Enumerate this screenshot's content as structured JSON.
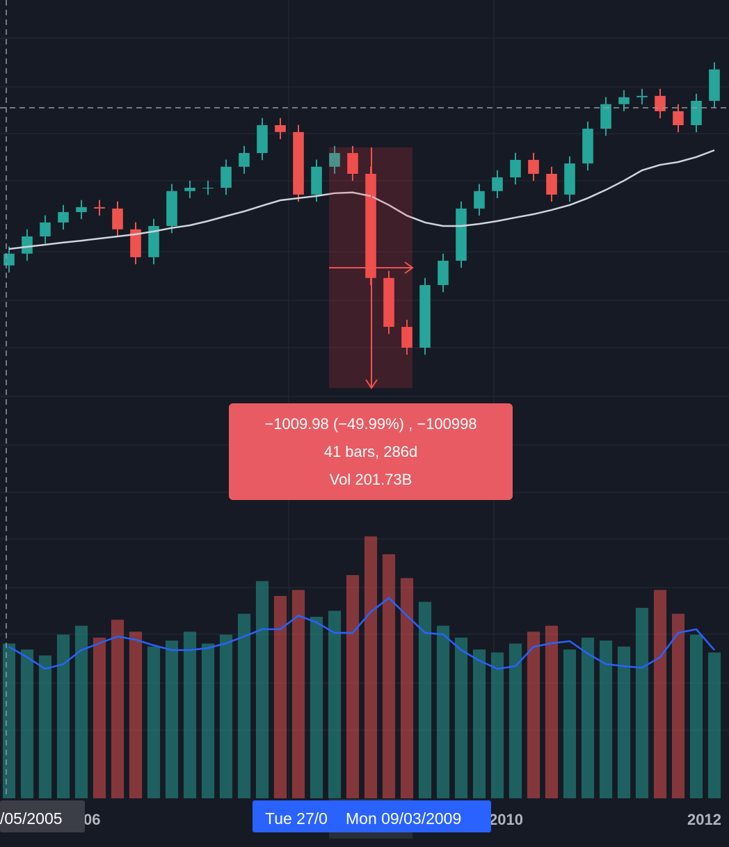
{
  "chart_data": [
    {
      "type": "candlestick",
      "ylim": [
        524,
        2644
      ],
      "up_color": "#26a69a",
      "down_color": "#ef5350",
      "open": [
        1520,
        1570,
        1643,
        1702,
        1746,
        1767,
        1761,
        1673,
        1555,
        1687,
        1835,
        1849,
        1849,
        1938,
        1996,
        2114,
        2085,
        1820,
        1938,
        1996,
        1908,
        1467,
        1260,
        1172,
        1437,
        1540,
        1761,
        1835,
        1893,
        1967,
        1908,
        1820,
        1952,
        2099,
        2203,
        2232,
        2238,
        2173,
        2114,
        2217
      ],
      "high": [
        1600,
        1673,
        1732,
        1776,
        1797,
        1797,
        1791,
        1703,
        1717,
        1865,
        1879,
        1879,
        1968,
        2026,
        2144,
        2144,
        2115,
        1968,
        2026,
        2026,
        1938,
        1497,
        1290,
        1467,
        1570,
        1791,
        1865,
        1923,
        1997,
        1997,
        1938,
        1982,
        2129,
        2233,
        2262,
        2268,
        2268,
        2203,
        2247,
        2380
      ],
      "low": [
        1490,
        1540,
        1613,
        1672,
        1716,
        1731,
        1643,
        1525,
        1525,
        1657,
        1805,
        1819,
        1819,
        1908,
        1966,
        2055,
        1790,
        1790,
        1908,
        1878,
        1437,
        1230,
        1142,
        1142,
        1407,
        1510,
        1731,
        1805,
        1863,
        1878,
        1790,
        1790,
        1922,
        2069,
        2173,
        2202,
        2143,
        2084,
        2084,
        2187
      ],
      "close": [
        1570,
        1643,
        1702,
        1746,
        1767,
        1761,
        1673,
        1555,
        1687,
        1835,
        1849,
        1849,
        1938,
        1996,
        2114,
        2085,
        1820,
        1938,
        1996,
        1908,
        1467,
        1260,
        1172,
        1437,
        1540,
        1761,
        1835,
        1893,
        1967,
        1908,
        1820,
        1952,
        2099,
        2203,
        2232,
        2238,
        2173,
        2114,
        2217,
        2350
      ],
      "moving_average": {
        "color": "#d1d4dc",
        "values": [
          1590,
          1599,
          1608,
          1617,
          1625,
          1634,
          1643,
          1652,
          1664,
          1679,
          1690,
          1708,
          1729,
          1749,
          1773,
          1796,
          1805,
          1814,
          1826,
          1829,
          1814,
          1776,
          1731,
          1702,
          1687,
          1687,
          1696,
          1708,
          1723,
          1737,
          1755,
          1776,
          1805,
          1840,
          1879,
          1923,
          1946,
          1958,
          1979,
          2008
        ]
      },
      "annotation": [
        "−1009.98 (−49.99%) , −100998",
        "41 bars, 286d",
        "Vol 201.73B"
      ]
    },
    {
      "type": "volume",
      "ylim": [
        0,
        10
      ],
      "values": [
        5.2,
        5.0,
        4.8,
        5.5,
        5.8,
        5.4,
        6.0,
        5.6,
        5.1,
        5.3,
        5.6,
        5.2,
        5.5,
        6.2,
        7.3,
        6.8,
        7.0,
        6.1,
        6.3,
        7.5,
        8.8,
        8.2,
        7.4,
        6.6,
        5.8,
        5.4,
        5.0,
        4.9,
        5.2,
        5.6,
        5.8,
        5.0,
        5.4,
        5.3,
        5.1,
        6.4,
        7.0,
        6.2,
        5.5,
        4.9
      ],
      "moving_average": {
        "color": "#2962ff",
        "values": [
          5.09,
          4.74,
          4.35,
          4.51,
          4.98,
          5.21,
          5.44,
          5.33,
          5.14,
          4.98,
          4.98,
          5.05,
          5.21,
          5.44,
          5.68,
          5.68,
          6.14,
          5.91,
          5.56,
          5.56,
          6.26,
          6.73,
          6.14,
          5.56,
          5.51,
          4.98,
          4.63,
          4.35,
          4.44,
          5.09,
          5.21,
          5.28,
          4.86,
          4.51,
          4.44,
          4.39,
          4.74,
          5.56,
          5.68,
          4.98
        ]
      }
    }
  ],
  "time_axis": {
    "labels": [
      "/05/2005",
      "06",
      "2010",
      "2012"
    ],
    "crosshair_labels": [
      "Tue 27/0",
      "Mon 09/03/2009"
    ]
  }
}
